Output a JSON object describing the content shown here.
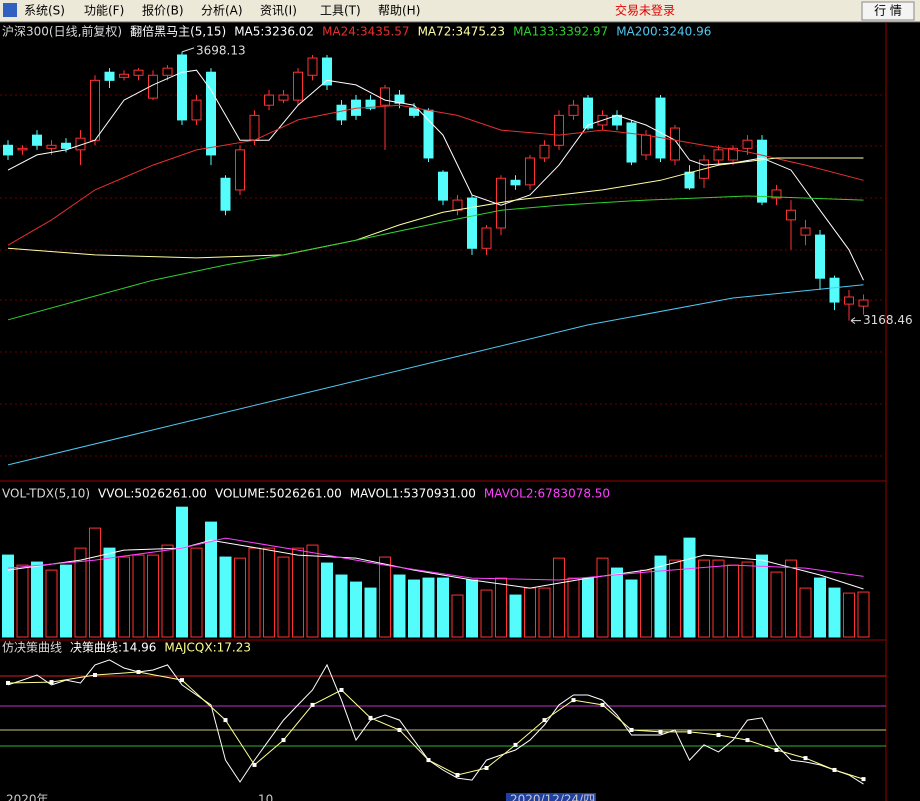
{
  "menu": {
    "items": [
      "系统(S)",
      "功能(F)",
      "报价(B)",
      "分析(A)",
      "资讯(I)",
      "工具(T)",
      "帮助(H)"
    ],
    "login_status": "交易未登录",
    "quote_button": "行 情"
  },
  "chart_data": [
    {
      "type": "candlestick",
      "title": "沪深300(日线,前复权)",
      "indicator": "翻倍黑马主(5,15)",
      "up_color": "#ff3232",
      "down_color": "#54fcfc",
      "ylim": [
        2874,
        3757
      ],
      "open": [
        3514,
        3505,
        3534,
        3508,
        3518,
        3505,
        3524,
        3658,
        3648,
        3652,
        3607,
        3652,
        3692,
        3564,
        3658,
        3449,
        3426,
        3524,
        3593,
        3603,
        3603,
        3652,
        3686,
        3593,
        3603,
        3603,
        3593,
        3613,
        3587,
        3583,
        3461,
        3386,
        3410,
        3311,
        3351,
        3445,
        3436,
        3489,
        3514,
        3573,
        3607,
        3554,
        3573,
        3558,
        3495,
        3607,
        3485,
        3461,
        3449,
        3485,
        3485,
        3508,
        3524,
        3410,
        3367,
        3337,
        3337,
        3252,
        3201,
        3197
      ],
      "high": [
        3524,
        3514,
        3544,
        3524,
        3528,
        3544,
        3652,
        3666,
        3662,
        3666,
        3662,
        3672,
        3698.13,
        3613,
        3666,
        3455,
        3514,
        3583,
        3623,
        3623,
        3666,
        3692,
        3692,
        3603,
        3613,
        3613,
        3633,
        3623,
        3597,
        3587,
        3465,
        3416,
        3416,
        3357,
        3455,
        3455,
        3495,
        3524,
        3583,
        3603,
        3613,
        3583,
        3583,
        3564,
        3544,
        3613,
        3554,
        3475,
        3495,
        3514,
        3514,
        3534,
        3534,
        3436,
        3406,
        3367,
        3347,
        3257,
        3229,
        3220
      ],
      "low": [
        3485,
        3495,
        3505,
        3495,
        3500,
        3475,
        3514,
        3627,
        3642,
        3642,
        3603,
        3642,
        3554,
        3554,
        3475,
        3376,
        3416,
        3514,
        3583,
        3597,
        3593,
        3642,
        3623,
        3554,
        3564,
        3583,
        3505,
        3587,
        3568,
        3481,
        3396,
        3376,
        3298,
        3298,
        3337,
        3426,
        3426,
        3481,
        3505,
        3564,
        3544,
        3544,
        3544,
        3475,
        3485,
        3481,
        3475,
        3426,
        3430,
        3475,
        3475,
        3495,
        3396,
        3396,
        3308,
        3317,
        3229,
        3189,
        3168.46,
        3180
      ],
      "close": [
        3495,
        3508,
        3514,
        3514,
        3508,
        3528,
        3642,
        3642,
        3654,
        3662,
        3652,
        3666,
        3564,
        3603,
        3495,
        3386,
        3505,
        3573,
        3613,
        3613,
        3658,
        3686,
        3633,
        3564,
        3573,
        3587,
        3627,
        3597,
        3573,
        3489,
        3406,
        3406,
        3311,
        3351,
        3449,
        3436,
        3489,
        3514,
        3573,
        3593,
        3548,
        3573,
        3554,
        3481,
        3534,
        3489,
        3548,
        3430,
        3485,
        3505,
        3508,
        3524,
        3402,
        3426,
        3386,
        3351,
        3252,
        3205,
        3215,
        3209
      ],
      "series": [
        {
          "label": "MA5:3236.02",
          "color": "#ffffff",
          "x": [
            0,
            2,
            4,
            6,
            8,
            10,
            12,
            13,
            14,
            16,
            18,
            20,
            22,
            24,
            26,
            28,
            30,
            32,
            34,
            36,
            38,
            40,
            42,
            44,
            46,
            47,
            48,
            50,
            52,
            54,
            56,
            58,
            59
          ],
          "values": [
            3465,
            3495,
            3505,
            3524,
            3603,
            3633,
            3658,
            3662,
            3623,
            3524,
            3524,
            3593,
            3642,
            3633,
            3603,
            3593,
            3534,
            3416,
            3396,
            3416,
            3475,
            3554,
            3573,
            3554,
            3524,
            3485,
            3475,
            3479,
            3489,
            3465,
            3386,
            3308,
            3248
          ]
        },
        {
          "label": "MA24:3435.57",
          "color": "#e83030",
          "x": [
            0,
            3,
            6,
            10,
            13,
            17,
            20,
            24,
            27,
            31,
            34,
            38,
            41,
            44,
            48,
            51,
            55,
            59
          ],
          "values": [
            3317,
            3367,
            3426,
            3475,
            3505,
            3524,
            3564,
            3587,
            3593,
            3573,
            3544,
            3534,
            3544,
            3534,
            3514,
            3501,
            3475,
            3445
          ]
        },
        {
          "label": "MA72:3475.23",
          "color": "#ffffa0",
          "x": [
            0,
            6,
            13,
            19,
            24,
            27,
            30,
            35,
            41,
            45,
            49,
            53,
            59
          ],
          "values": [
            3311,
            3298,
            3292,
            3298,
            3327,
            3357,
            3382,
            3406,
            3426,
            3445,
            3475,
            3489,
            3489
          ]
        },
        {
          "label": "MA133:3392.97",
          "color": "#30d030",
          "x": [
            0,
            5,
            10,
            15,
            19,
            24,
            30,
            34,
            38,
            44,
            51,
            59
          ],
          "values": [
            3170,
            3209,
            3248,
            3278,
            3298,
            3327,
            3363,
            3386,
            3396,
            3406,
            3414,
            3406
          ]
        },
        {
          "label": "MA200:3240.96",
          "color": "#50c8f0",
          "x": [
            0,
            10,
            20,
            30,
            40,
            50,
            59
          ],
          "values": [
            2884,
            2953,
            3022,
            3091,
            3160,
            3213,
            3239
          ]
        }
      ]
    },
    {
      "type": "bar",
      "title": "VOL-TDX(5,10)",
      "indicators": [
        "VVOL:5026261.00",
        "VOLUME:5026261.00"
      ],
      "ylim": [
        0,
        17000000
      ],
      "values": [
        9160000,
        8040000,
        8380000,
        7480000,
        8040000,
        9940000,
        12180000,
        9940000,
        8940000,
        9160000,
        9160000,
        10280000,
        14520000,
        9940000,
        12850000,
        8940000,
        8820000,
        9940000,
        9940000,
        8940000,
        9940000,
        10280000,
        8270000,
        6930000,
        6140000,
        5470000,
        8940000,
        6930000,
        6370000,
        6590000,
        6590000,
        4690000,
        6370000,
        5250000,
        6590000,
        4690000,
        5470000,
        5470000,
        8820000,
        6590000,
        6590000,
        8820000,
        7710000,
        6370000,
        7480000,
        9050000,
        8600000,
        11060000,
        8600000,
        8600000,
        8040000,
        8380000,
        9160000,
        7260000,
        8600000,
        5470000,
        6590000,
        5470000,
        4910000,
        5026261
      ],
      "series": [
        {
          "label": "MAVOL1:5370931.00",
          "color": "#ffffff",
          "x": [
            0,
            5,
            8,
            12,
            14,
            16,
            20,
            24,
            28,
            32,
            36,
            40,
            44,
            48,
            52,
            56,
            59
          ],
          "values": [
            7480000,
            8600000,
            9720000,
            9940000,
            10830000,
            10280000,
            9160000,
            8820000,
            7480000,
            6370000,
            5470000,
            6590000,
            7480000,
            9160000,
            8600000,
            6930000,
            5370931
          ]
        },
        {
          "label": "MAVOL2:6783078.50",
          "color": "#ff40ff",
          "x": [
            0,
            6,
            12,
            15,
            20,
            26,
            32,
            38,
            44,
            50,
            55,
            59
          ],
          "values": [
            7710000,
            8600000,
            9940000,
            11060000,
            9720000,
            8040000,
            6590000,
            6370000,
            7260000,
            8040000,
            7710000,
            6783078.5
          ]
        }
      ]
    },
    {
      "type": "line",
      "title": "仿决策曲线",
      "ylim": [
        10,
        76
      ],
      "series": [
        {
          "label": "决策曲线:14.96",
          "color": "#ffffff",
          "values": [
            60.1,
            62.3,
            64.6,
            60.1,
            62.3,
            61.0,
            69.2,
            71.5,
            67.8,
            66.0,
            66.9,
            69.2,
            60.1,
            55.5,
            51.0,
            25.9,
            15.9,
            25.9,
            35.0,
            44.1,
            51.0,
            57.8,
            69.2,
            53.2,
            35.0,
            44.1,
            46.4,
            44.1,
            35.0,
            25.9,
            21.4,
            17.7,
            16.8,
            25.9,
            28.2,
            30.5,
            35.0,
            41.9,
            51.0,
            55.5,
            55.5,
            53.2,
            46.4,
            37.3,
            37.3,
            37.3,
            39.6,
            25.9,
            32.8,
            29.6,
            35.0,
            44.1,
            45.1,
            32.8,
            25.9,
            25.0,
            23.7,
            21.4,
            19.1,
            14.96
          ]
        },
        {
          "label": "MAJCQX:17.23",
          "color": "#ffff90",
          "markers": true,
          "x": [
            0,
            3,
            6,
            9,
            12,
            15,
            17,
            19,
            21,
            23,
            25,
            27,
            29,
            31,
            33,
            35,
            37,
            39,
            41,
            43,
            45,
            47,
            49,
            51,
            53,
            55,
            57,
            59
          ],
          "values": [
            61.0,
            61.4,
            64.6,
            66.0,
            62.3,
            44.1,
            23.7,
            35.0,
            51.0,
            57.8,
            45.1,
            39.6,
            25.9,
            19.1,
            22.3,
            32.8,
            44.1,
            53.2,
            51.0,
            39.6,
            38.7,
            38.7,
            37.3,
            35.0,
            30.5,
            26.8,
            21.4,
            17.23
          ]
        }
      ]
    }
  ],
  "footer": {
    "labels": [
      "2020年",
      "10",
      "2020/12/24/四"
    ]
  }
}
